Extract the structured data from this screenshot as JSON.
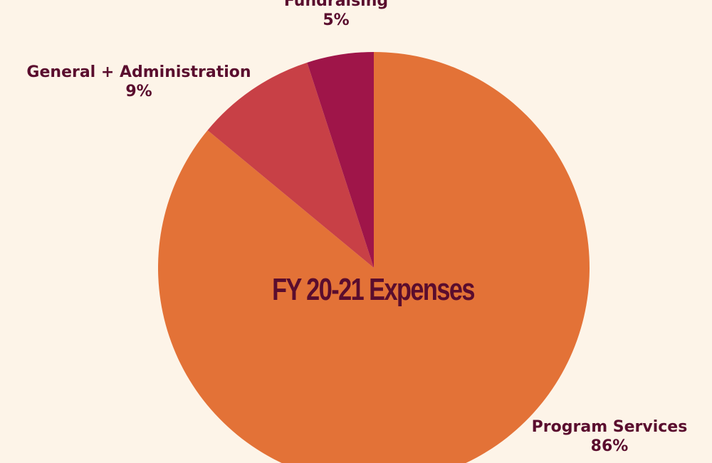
{
  "chart_data": {
    "type": "pie",
    "title": "FY 20-21 Expenses",
    "slices": [
      {
        "name": "Program Services",
        "value": 86,
        "label": "86%",
        "color": "#e37237"
      },
      {
        "name": "General + Administration",
        "value": 9,
        "label": "9%",
        "color": "#c84046"
      },
      {
        "name": "Fundraising",
        "value": 5,
        "label": "5%",
        "color": "#9f1549"
      }
    ],
    "legend": "none",
    "background": "#fdf4e8",
    "text_color": "#5a0d2e"
  }
}
